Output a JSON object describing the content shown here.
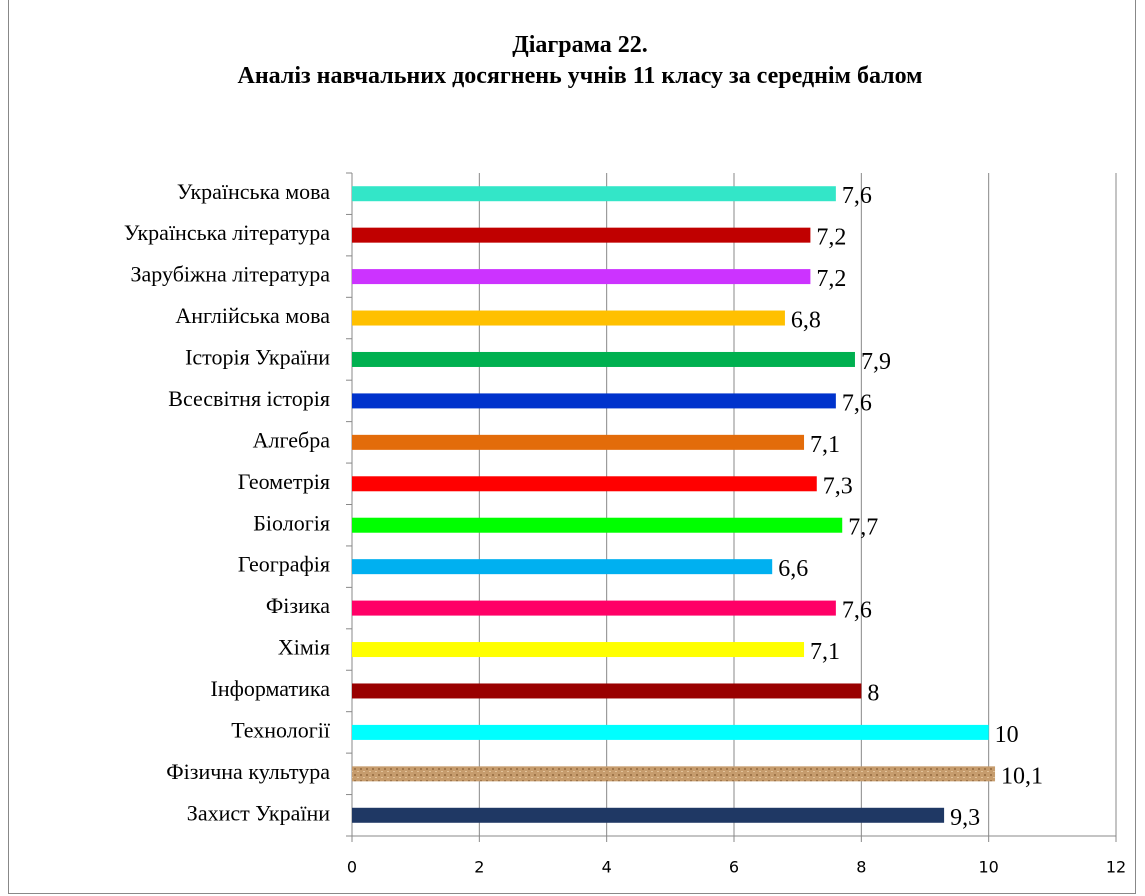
{
  "chart_data": {
    "type": "bar",
    "orientation": "horizontal",
    "title": "Діаграма  22.",
    "subtitle": "Аналіз навчальних досягнень учнів 11   класу за  середнім балом",
    "categories": [
      "Українська мова",
      "Українська література",
      "Зарубіжна література",
      "Англійська мова",
      "Історія України",
      "Всесвітня історія",
      "Алгебра",
      "Геометрія",
      "Біологія",
      "Географія",
      "Фізика",
      "Хімія",
      "Інформатика",
      "Технології",
      "Фізична культура",
      "Захист України"
    ],
    "values": [
      7.6,
      7.2,
      7.2,
      6.8,
      7.9,
      7.6,
      7.1,
      7.3,
      7.7,
      6.6,
      7.6,
      7.1,
      8,
      10,
      10.1,
      9.3
    ],
    "value_labels": [
      "7,6",
      "7,2",
      "7,2",
      "6,8",
      "7,9",
      "7,6",
      "7,1",
      "7,3",
      "7,7",
      "6,6",
      "7,6",
      "7,1",
      "8",
      "10",
      "10,1",
      "9,3"
    ],
    "colors": [
      "#33e6c8",
      "#c00000",
      "#cc33ff",
      "#ffc000",
      "#00b050",
      "#0033cc",
      "#e36c0a",
      "#ff0000",
      "#00ff00",
      "#00b0f0",
      "#ff0066",
      "#ffff00",
      "#990000",
      "#00ffff",
      "#c69c6d",
      "#1f3864"
    ],
    "xlim": [
      0,
      12
    ],
    "xticks": [
      0,
      2,
      4,
      6,
      8,
      10,
      12
    ],
    "grid": true
  }
}
